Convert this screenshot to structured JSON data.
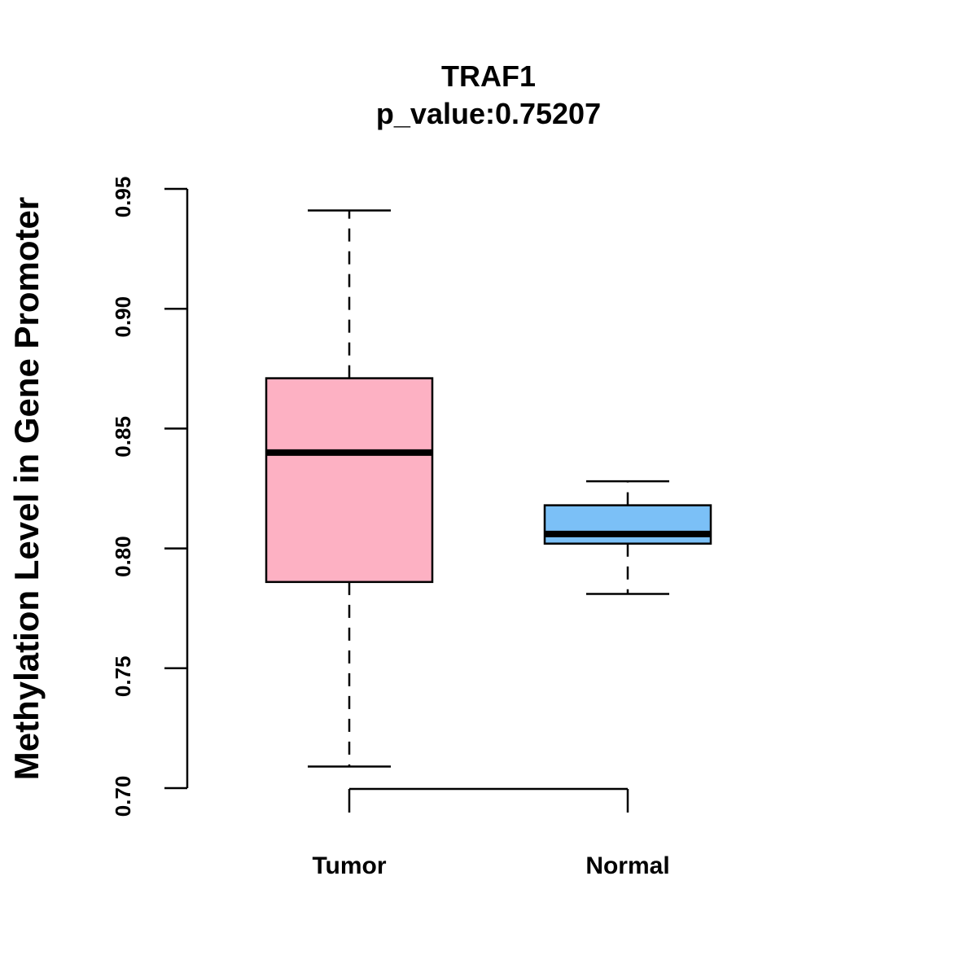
{
  "chart_data": {
    "type": "boxplot",
    "title": "TRAF1",
    "subtitle": "p_value:0.75207",
    "xlabel": "",
    "ylabel": "Methylation Level in Gene Promoter",
    "ylim": [
      0.7,
      0.95
    ],
    "yticks": [
      0.7,
      0.75,
      0.8,
      0.85,
      0.9,
      0.95
    ],
    "ytick_labels": [
      "0.70",
      "0.75",
      "0.80",
      "0.85",
      "0.90",
      "0.95"
    ],
    "categories": [
      "Tumor",
      "Normal"
    ],
    "series": [
      {
        "name": "Tumor",
        "whisker_low": 0.709,
        "q1": 0.786,
        "median": 0.84,
        "q3": 0.871,
        "whisker_high": 0.941,
        "color": "#FDB1C3"
      },
      {
        "name": "Normal",
        "whisker_low": 0.781,
        "q1": 0.802,
        "median": 0.806,
        "q3": 0.818,
        "whisker_high": 0.828,
        "color": "#7BC0F7"
      }
    ]
  }
}
